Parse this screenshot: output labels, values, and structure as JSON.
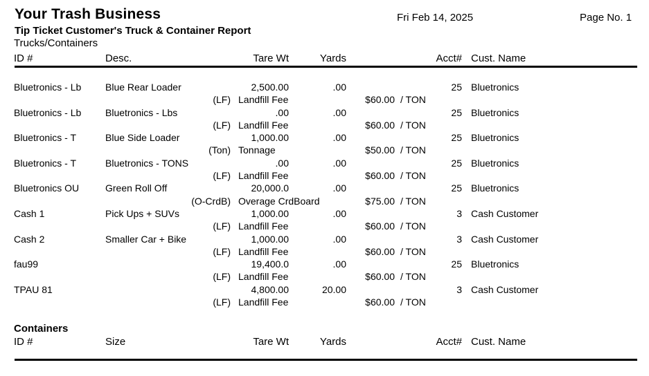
{
  "header": {
    "company": "Your Trash Business",
    "report_title": "Tip Ticket Customer's Truck & Container Report",
    "date": "Fri Feb 14, 2025",
    "page": "Page No. 1"
  },
  "trucks_section": {
    "label": "Trucks/Containers",
    "columns": {
      "id": "ID #",
      "desc": "Desc.",
      "tare": "Tare Wt",
      "yards": "Yards",
      "acct": "Acct#",
      "cust": "Cust. Name"
    },
    "rows": [
      {
        "id": "Bluetronics - Lb",
        "desc": "Blue Rear Loader",
        "tare": "2,500.00",
        "yards": ".00",
        "acct": "25",
        "cust": "Bluetronics",
        "fee_code": "(LF)",
        "fee_desc": "Landfill Fee",
        "fee_amount": "$60.00",
        "fee_unit": "/ TON"
      },
      {
        "id": "Bluetronics - Lb",
        "desc": "Bluetronics - Lbs",
        "tare": ".00",
        "yards": ".00",
        "acct": "25",
        "cust": "Bluetronics",
        "fee_code": "(LF)",
        "fee_desc": "Landfill Fee",
        "fee_amount": "$60.00",
        "fee_unit": "/ TON"
      },
      {
        "id": "Bluetronics - T",
        "desc": "Blue Side Loader",
        "tare": "1,000.00",
        "yards": ".00",
        "acct": "25",
        "cust": "Bluetronics",
        "fee_code": "(Ton)",
        "fee_desc": "Tonnage",
        "fee_amount": "$50.00",
        "fee_unit": "/ TON"
      },
      {
        "id": "Bluetronics - T",
        "desc": "Bluetronics - TONS",
        "tare": ".00",
        "yards": ".00",
        "acct": "25",
        "cust": "Bluetronics",
        "fee_code": "(LF)",
        "fee_desc": "Landfill Fee",
        "fee_amount": "$60.00",
        "fee_unit": "/ TON"
      },
      {
        "id": "Bluetronics OU",
        "desc": "Green Roll Off",
        "tare": "20,000.0",
        "yards": ".00",
        "acct": "25",
        "cust": "Bluetronics",
        "fee_code": "(O-CrdB)",
        "fee_desc": "Overage CrdBoard",
        "fee_amount": "$75.00",
        "fee_unit": "/ TON"
      },
      {
        "id": "Cash 1",
        "desc": "Pick Ups + SUVs",
        "tare": "1,000.00",
        "yards": ".00",
        "acct": "3",
        "cust": "Cash Customer",
        "fee_code": "(LF)",
        "fee_desc": "Landfill Fee",
        "fee_amount": "$60.00",
        "fee_unit": "/ TON"
      },
      {
        "id": "Cash 2",
        "desc": "Smaller Car + Bike",
        "tare": "1,000.00",
        "yards": ".00",
        "acct": "3",
        "cust": "Cash Customer",
        "fee_code": "(LF)",
        "fee_desc": "Landfill Fee",
        "fee_amount": "$60.00",
        "fee_unit": "/ TON"
      },
      {
        "id": "fau99",
        "desc": "",
        "tare": "19,400.0",
        "yards": ".00",
        "acct": "25",
        "cust": "Bluetronics",
        "fee_code": "(LF)",
        "fee_desc": "Landfill Fee",
        "fee_amount": "$60.00",
        "fee_unit": "/ TON"
      },
      {
        "id": "TPAU 81",
        "desc": "",
        "tare": "4,800.00",
        "yards": "20.00",
        "acct": "3",
        "cust": "Cash Customer",
        "fee_code": "(LF)",
        "fee_desc": "Landfill Fee",
        "fee_amount": "$60.00",
        "fee_unit": "/ TON"
      }
    ]
  },
  "containers_section": {
    "label": "Containers",
    "columns": {
      "id": "ID #",
      "size": "Size",
      "tare": "Tare Wt",
      "yards": "Yards",
      "acct": "Acct#",
      "cust": "Cust. Name"
    },
    "rows": []
  }
}
